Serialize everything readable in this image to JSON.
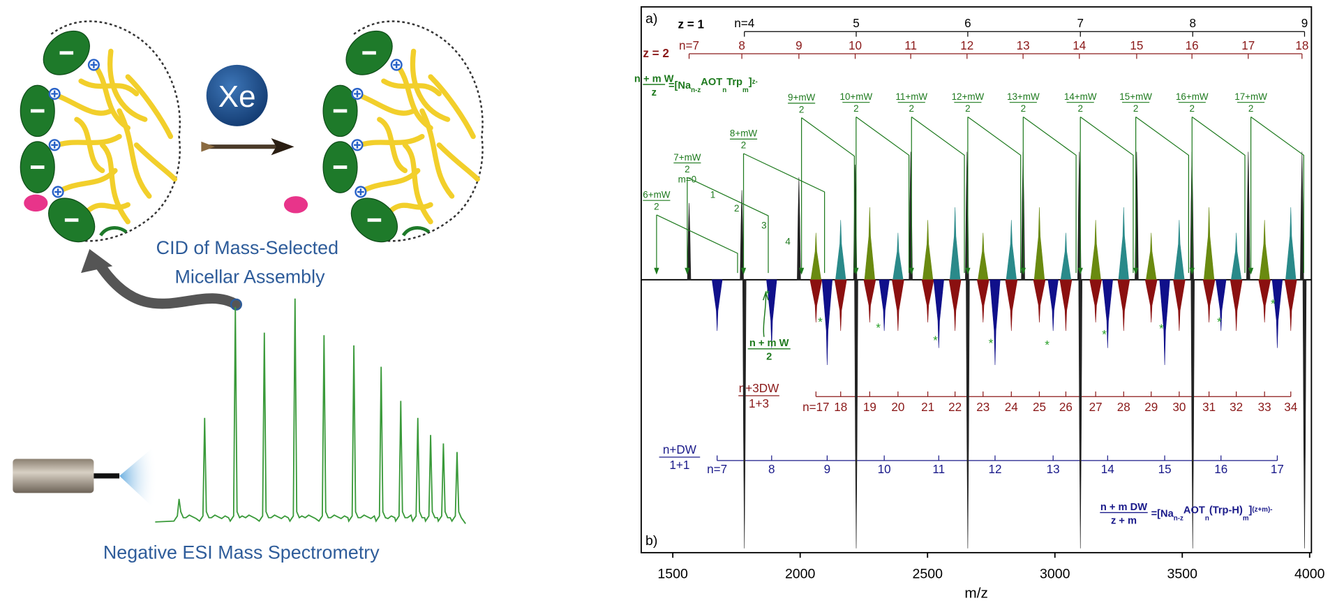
{
  "figure": {
    "xe": "Xe",
    "cid_title": [
      "CID of Mass-Selected",
      "Micellar Assembly"
    ],
    "esi_title": "Negative ESI Mass Spectrometry",
    "panel_labels": [
      "a)",
      "b)"
    ]
  },
  "chart_data": {
    "type": "spectrum",
    "x_label": "m/z",
    "xlim": [
      1376,
      4007
    ],
    "xticks": [
      1500,
      2000,
      2500,
      3000,
      3500,
      4000
    ],
    "ladders": [
      {
        "name": "z = 1",
        "color": "#000000",
        "ticks": [
          {
            "value": 1781,
            "label": "n=4"
          },
          {
            "value": 2220,
            "label": "5"
          },
          {
            "value": 2658,
            "label": "6"
          },
          {
            "value": 3100,
            "label": "7"
          },
          {
            "value": 3541,
            "label": "8"
          },
          {
            "value": 3980,
            "label": "9"
          }
        ]
      },
      {
        "name": "z = 2",
        "color": "#8b1a1a",
        "ticks": [
          {
            "value": 1564,
            "label": "n=7"
          },
          {
            "value": 1771,
            "label": "8"
          },
          {
            "value": 1995,
            "label": "9"
          },
          {
            "value": 2216,
            "label": "10"
          },
          {
            "value": 2434,
            "label": "11"
          },
          {
            "value": 2655,
            "label": "12"
          },
          {
            "value": 2875,
            "label": "13"
          },
          {
            "value": 3096,
            "label": "14"
          },
          {
            "value": 3321,
            "label": "15"
          },
          {
            "value": 3538,
            "label": "16"
          },
          {
            "value": 3759,
            "label": "17"
          },
          {
            "value": 3970,
            "label": "18"
          }
        ]
      },
      {
        "name_num": "n+3DW",
        "name_den": "1+3",
        "color": "#8b1a1a",
        "ticks": [
          {
            "value": 2062,
            "label": "n=17"
          },
          {
            "value": 2159,
            "label": "18"
          },
          {
            "value": 2273,
            "label": "19"
          },
          {
            "value": 2384,
            "label": "20"
          },
          {
            "value": 2501,
            "label": "21"
          },
          {
            "value": 2608,
            "label": "22"
          },
          {
            "value": 2718,
            "label": "23"
          },
          {
            "value": 2829,
            "label": "24"
          },
          {
            "value": 2939,
            "label": "25"
          },
          {
            "value": 3043,
            "label": "26"
          },
          {
            "value": 3160,
            "label": "27"
          },
          {
            "value": 3270,
            "label": "28"
          },
          {
            "value": 3378,
            "label": "29"
          },
          {
            "value": 3488,
            "label": "30"
          },
          {
            "value": 3605,
            "label": "31"
          },
          {
            "value": 3712,
            "label": "32"
          },
          {
            "value": 3823,
            "label": "33"
          },
          {
            "value": 3926,
            "label": "34"
          }
        ]
      },
      {
        "name_num": "n+DW",
        "name_den": "1+1",
        "color": "#1a1a8a",
        "ticks": [
          {
            "value": 1674,
            "label": "n=7"
          },
          {
            "value": 1888,
            "label": "8"
          },
          {
            "value": 2106,
            "label": "9"
          },
          {
            "value": 2330,
            "label": "10"
          },
          {
            "value": 2544,
            "label": "11"
          },
          {
            "value": 2765,
            "label": "12"
          },
          {
            "value": 2993,
            "label": "13"
          },
          {
            "value": 3207,
            "label": "14"
          },
          {
            "value": 3431,
            "label": "15"
          },
          {
            "value": 3652,
            "label": "16"
          },
          {
            "value": 3873,
            "label": "17"
          }
        ]
      }
    ],
    "green_labels": {
      "numerators": [
        "6+mW",
        "7+mW",
        "8+mW",
        "9+mW",
        "10+mW",
        "11+mW",
        "12+mW",
        "13+mW",
        "14+mW",
        "15+mW",
        "16+mW",
        "17+mW"
      ],
      "denominator": "2",
      "m_labels": [
        "m=0",
        "1",
        "2",
        "3",
        "4"
      ]
    },
    "formula_a": {
      "num": "n + m W",
      "den": "z",
      "rhs": [
        "=[Na",
        "n-z",
        "AOT",
        "n",
        "Trp",
        "m",
        "]",
        "z-"
      ]
    },
    "formula_b": {
      "num": "n + m DW",
      "den": "z + m",
      "rhs": [
        "=[Na",
        "n-z",
        "AOT",
        "n",
        "(Trp-H)",
        "m",
        "]",
        "(z+m)-"
      ]
    },
    "lower_label": {
      "num": "n + m W",
      "den": "2"
    },
    "asterisk": "*"
  }
}
